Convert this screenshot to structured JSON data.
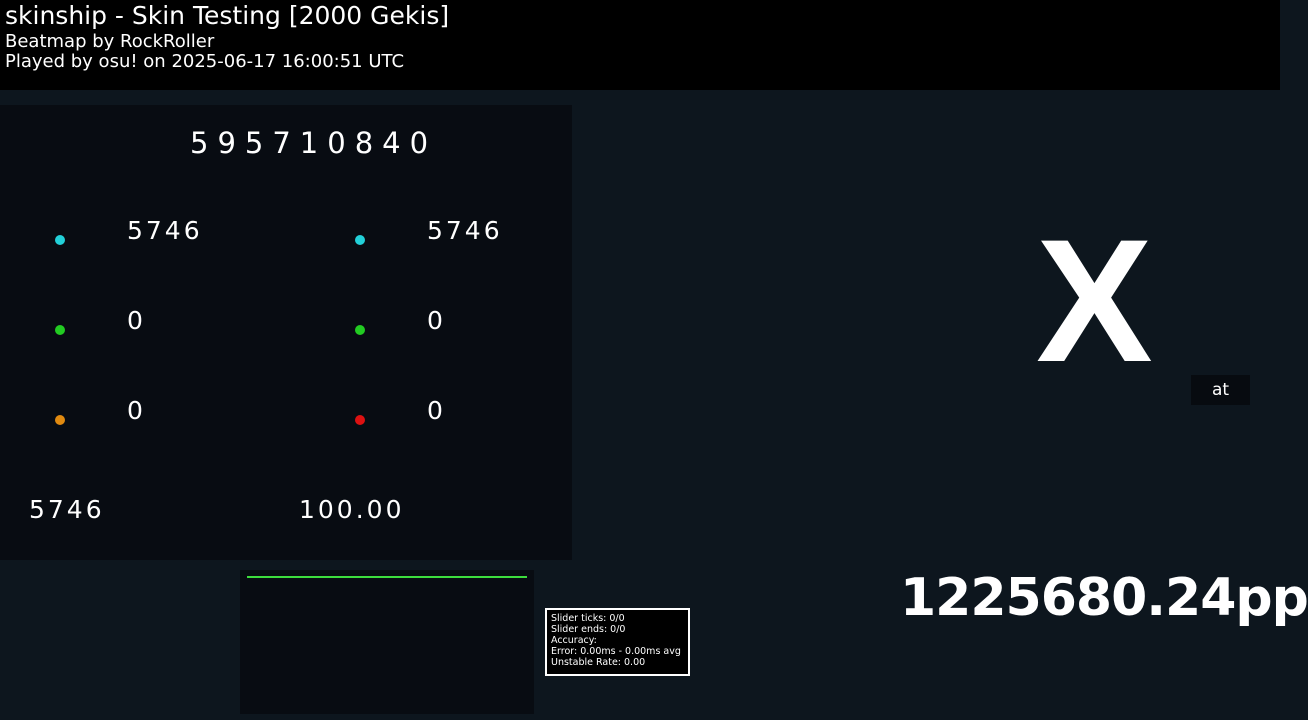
{
  "header": {
    "title": "skinship - Skin Testing [2000 Gekis]",
    "mapper": "Beatmap by RockRoller",
    "played": "Played by osu! on 2025-06-17 16:00:51 UTC"
  },
  "results": {
    "score": "595710840",
    "left": [
      {
        "color": "#22d0d8",
        "value": "5746"
      },
      {
        "color": "#22cc22",
        "value": "0"
      },
      {
        "color": "#e08a10",
        "value": "0"
      }
    ],
    "right": [
      {
        "color": "#22d0d8",
        "value": "5746"
      },
      {
        "color": "#22cc22",
        "value": "0"
      },
      {
        "color": "#dd1111",
        "value": "0"
      }
    ],
    "combo": "5746",
    "accuracy": "100.00"
  },
  "grade": "X",
  "at_label": "at",
  "pp": "1225680.24pp",
  "stats": {
    "l1": "Slider ticks: 0/0",
    "l2": "Slider ends: 0/0",
    "l3": "Accuracy:",
    "l4": "Error: 0.00ms - 0.00ms avg",
    "l5": "Unstable Rate: 0.00"
  }
}
